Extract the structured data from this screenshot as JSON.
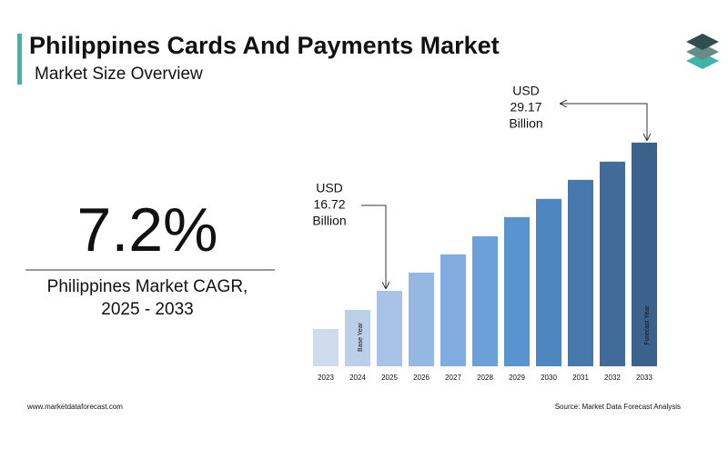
{
  "header": {
    "title": "Philippines Cards And Payments Market",
    "subtitle": "Market Size Overview"
  },
  "cagr": {
    "value": 7.2,
    "label": "7.2%",
    "caption": [
      "Philippines Market CAGR,",
      "2025 - 2033"
    ]
  },
  "footer": {
    "website": "www.marketdataforecast.com",
    "source": "Source: Market Data Forecast Analysis"
  },
  "chart_data": {
    "type": "bar",
    "categories": [
      "2023",
      "2024",
      "2025",
      "2026",
      "2027",
      "2028",
      "2029",
      "2030",
      "2031",
      "2032",
      "2033"
    ],
    "values": [
      13.51,
      15.12,
      16.72,
      18.25,
      19.78,
      21.3,
      22.91,
      24.44,
      26.04,
      27.57,
      29.17
    ],
    "colors": [
      "#cfdcee",
      "#bccfe9",
      "#a9c3e6",
      "#94b8e2",
      "#80ace0",
      "#6ba0da",
      "#5a94d0",
      "#4e86c0",
      "#4778ac",
      "#416c9a",
      "#3a628c"
    ],
    "ylim": [
      10.38,
      30
    ],
    "bar_notes": [
      {
        "index": 1,
        "text": "Base Year"
      },
      {
        "index": 10,
        "text": "Forecast Year"
      }
    ],
    "callouts": [
      {
        "index": 2,
        "lines": [
          "USD",
          "16.72",
          "Billion"
        ]
      },
      {
        "index": 10,
        "lines": [
          "USD",
          "29.17",
          "Billion"
        ]
      }
    ]
  }
}
